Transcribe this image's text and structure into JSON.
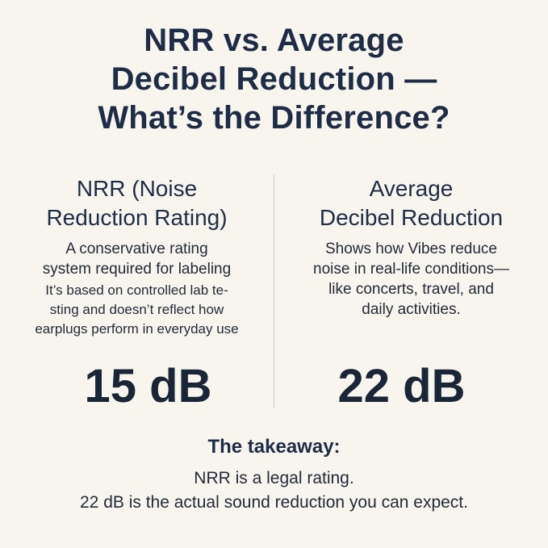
{
  "title": {
    "lines": [
      "NRR vs. Average",
      "Decibel Reduction —",
      "What’s the Difference?"
    ]
  },
  "nrr": {
    "heading_lines": [
      "NRR (Noise",
      "Reduction Rating)"
    ],
    "desc1_lines": [
      "A conservative rating",
      "system required for labeling"
    ],
    "desc2_lines": [
      "It’s based on controlled lab te-",
      "sting and doesn’t reflect how",
      "earplugs perform in everyday use"
    ],
    "value": "15 dB"
  },
  "average": {
    "heading_lines": [
      "Average",
      "Decibel Reduction"
    ],
    "desc_lines": [
      "Shows how Vibes reduce",
      "noise in real-life conditions—",
      "like concerts, travel, and",
      "daily activities."
    ],
    "value": "22 dB"
  },
  "takeaway": {
    "title": "The takeaway:",
    "line1": "NRR is a legal rating.",
    "line2": "22 dB is the actual sound reduction you can expect."
  }
}
